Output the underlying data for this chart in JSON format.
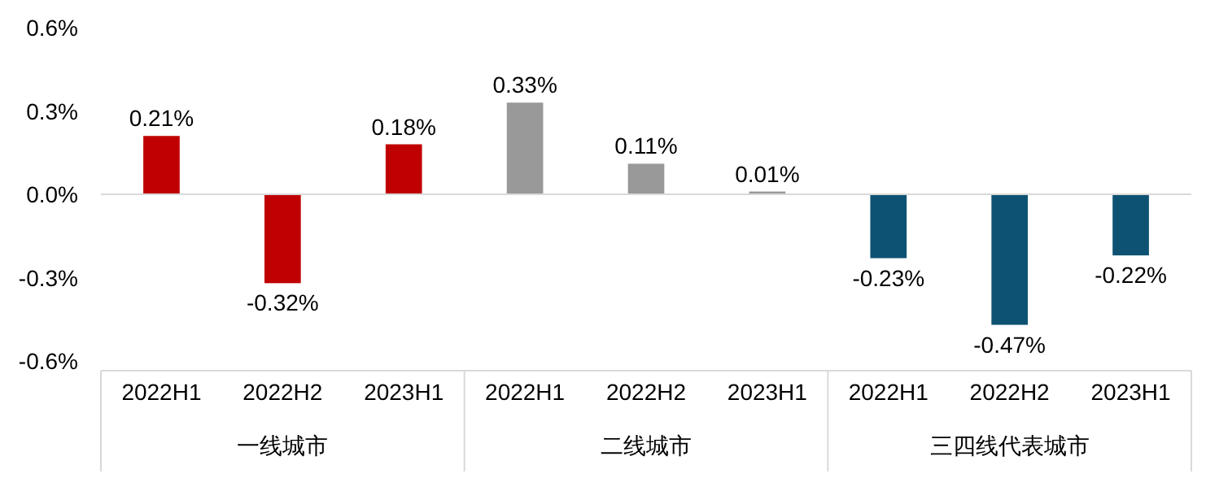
{
  "chart_data": {
    "type": "bar",
    "categories": [
      "2022H1",
      "2022H2",
      "2023H1",
      "2022H1",
      "2022H2",
      "2023H1",
      "2022H1",
      "2022H2",
      "2023H1"
    ],
    "values": [
      0.21,
      -0.32,
      0.18,
      0.33,
      0.11,
      0.01,
      -0.23,
      -0.47,
      -0.22
    ],
    "colors": [
      "#c00000",
      "#c00000",
      "#c00000",
      "#999999",
      "#999999",
      "#999999",
      "#0e5273",
      "#0e5273",
      "#0e5273"
    ],
    "value_labels": [
      "0.21%",
      "-0.32%",
      "0.18%",
      "0.33%",
      "0.11%",
      "0.01%",
      "-0.23%",
      "-0.47%",
      "-0.22%"
    ],
    "ylim": [
      -0.6,
      0.6
    ],
    "yticks": [
      {
        "value": -0.6,
        "label": "-0.6%"
      },
      {
        "value": -0.3,
        "label": "-0.3%"
      },
      {
        "value": 0,
        "label": "0.0%"
      },
      {
        "value": 0.3,
        "label": "0.3%"
      },
      {
        "value": 0.6,
        "label": "0.6%"
      }
    ],
    "annotations": [
      "一线城市",
      "二线城市",
      "三四线代表城市"
    ],
    "ref_lines": [
      {
        "axis": "y",
        "value": 0,
        "color": "#d9d9d9"
      }
    ]
  }
}
